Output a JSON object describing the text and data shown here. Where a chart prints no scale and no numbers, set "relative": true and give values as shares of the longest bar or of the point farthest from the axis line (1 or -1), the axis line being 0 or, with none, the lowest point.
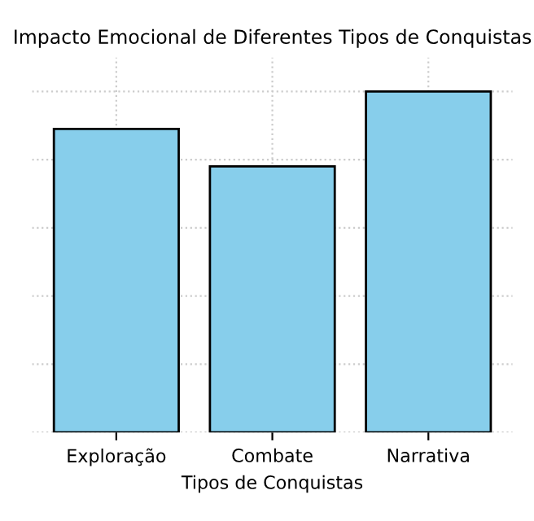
{
  "chart_data": {
    "type": "bar",
    "title": "Impacto Emocional de Diferentes Tipos de Conquistas",
    "xlabel": "Tipos de Conquistas",
    "categories": [
      "Exploração",
      "Combate",
      "Narrativa"
    ],
    "values": [
      0.89,
      0.78,
      1.0
    ],
    "color": "#87ceeb",
    "relative": true,
    "grid": true,
    "tick_labels": "x"
  }
}
